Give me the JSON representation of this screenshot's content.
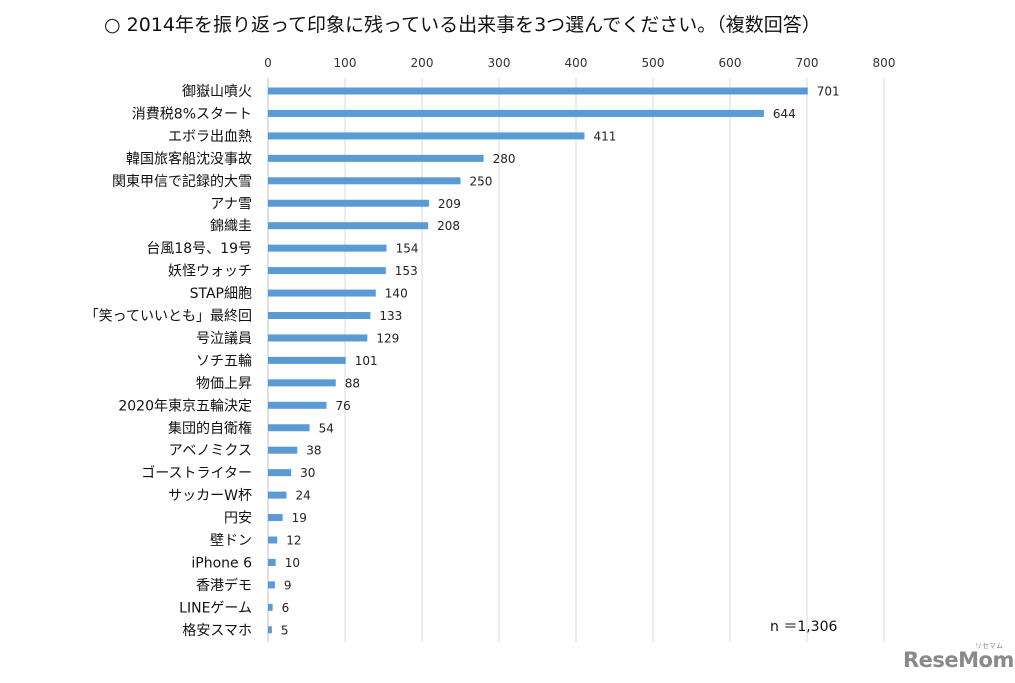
{
  "title": "○ 2014年を振り返って印象に残っている出来事を3つ選んでください。（複数回答）",
  "sample_size_label": "n ＝1,306",
  "logo": {
    "text": "ReseMom",
    "subtext": "リセマム"
  },
  "colors": {
    "bar": "#5b9bd5",
    "grid": "#d9d9d9"
  },
  "chart_data": {
    "type": "bar",
    "orientation": "horizontal",
    "title": "2014年を振り返って印象に残っている出来事を3つ選んでください。（複数回答）",
    "xlabel": "",
    "ylabel": "",
    "xlim": [
      0,
      800
    ],
    "ticks": [
      0,
      100,
      200,
      300,
      400,
      500,
      600,
      700,
      800
    ],
    "grid": true,
    "categories": [
      "御嶽山噴火",
      "消費税8%スタート",
      "エボラ出血熱",
      "韓国旅客船沈没事故",
      "関東甲信で記録的大雪",
      "アナ雪",
      "錦織圭",
      "台風18号、19号",
      "妖怪ウォッチ",
      "STAP細胞",
      "「笑っていいとも」最終回",
      "号泣議員",
      "ソチ五輪",
      "物価上昇",
      "2020年東京五輪決定",
      "集団的自衛権",
      "アベノミクス",
      "ゴーストライター",
      "サッカーW杯",
      "円安",
      "壁ドン",
      "iPhone 6",
      "香港デモ",
      "LINEゲーム",
      "格安スマホ"
    ],
    "values": [
      701,
      644,
      411,
      280,
      250,
      209,
      208,
      154,
      153,
      140,
      133,
      129,
      101,
      88,
      76,
      54,
      38,
      30,
      24,
      19,
      12,
      10,
      9,
      6,
      5
    ]
  }
}
